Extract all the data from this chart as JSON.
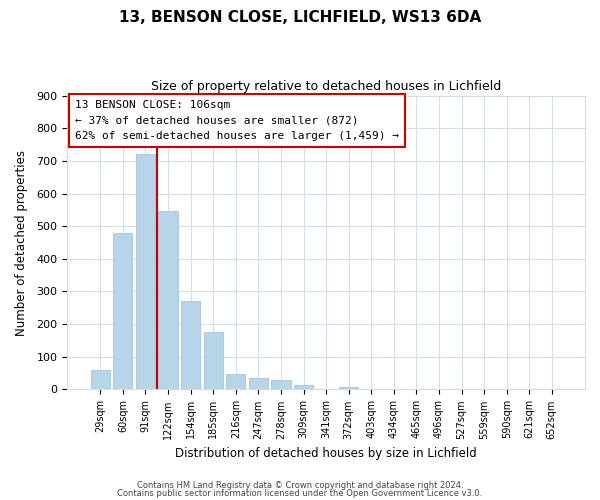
{
  "title": "13, BENSON CLOSE, LICHFIELD, WS13 6DA",
  "subtitle": "Size of property relative to detached houses in Lichfield",
  "xlabel": "Distribution of detached houses by size in Lichfield",
  "ylabel": "Number of detached properties",
  "bar_labels": [
    "29sqm",
    "60sqm",
    "91sqm",
    "122sqm",
    "154sqm",
    "185sqm",
    "216sqm",
    "247sqm",
    "278sqm",
    "309sqm",
    "341sqm",
    "372sqm",
    "403sqm",
    "434sqm",
    "465sqm",
    "496sqm",
    "527sqm",
    "559sqm",
    "590sqm",
    "621sqm",
    "652sqm"
  ],
  "bar_values": [
    60,
    480,
    720,
    545,
    270,
    175,
    48,
    35,
    30,
    14,
    0,
    7,
    0,
    0,
    0,
    0,
    0,
    0,
    0,
    0,
    0
  ],
  "bar_color": "#b8d4e8",
  "bar_edge_color": "#a0bcd8",
  "grid_color": "#d0dce8",
  "ylim": [
    0,
    900
  ],
  "yticks": [
    0,
    100,
    200,
    300,
    400,
    500,
    600,
    700,
    800,
    900
  ],
  "vline_color": "#cc0000",
  "annotation_line1": "13 BENSON CLOSE: 106sqm",
  "annotation_line2": "← 37% of detached houses are smaller (872)",
  "annotation_line3": "62% of semi-detached houses are larger (1,459) →",
  "footer_line1": "Contains HM Land Registry data © Crown copyright and database right 2024.",
  "footer_line2": "Contains public sector information licensed under the Open Government Licence v3.0.",
  "background_color": "#ffffff",
  "fig_width": 6.0,
  "fig_height": 5.0
}
